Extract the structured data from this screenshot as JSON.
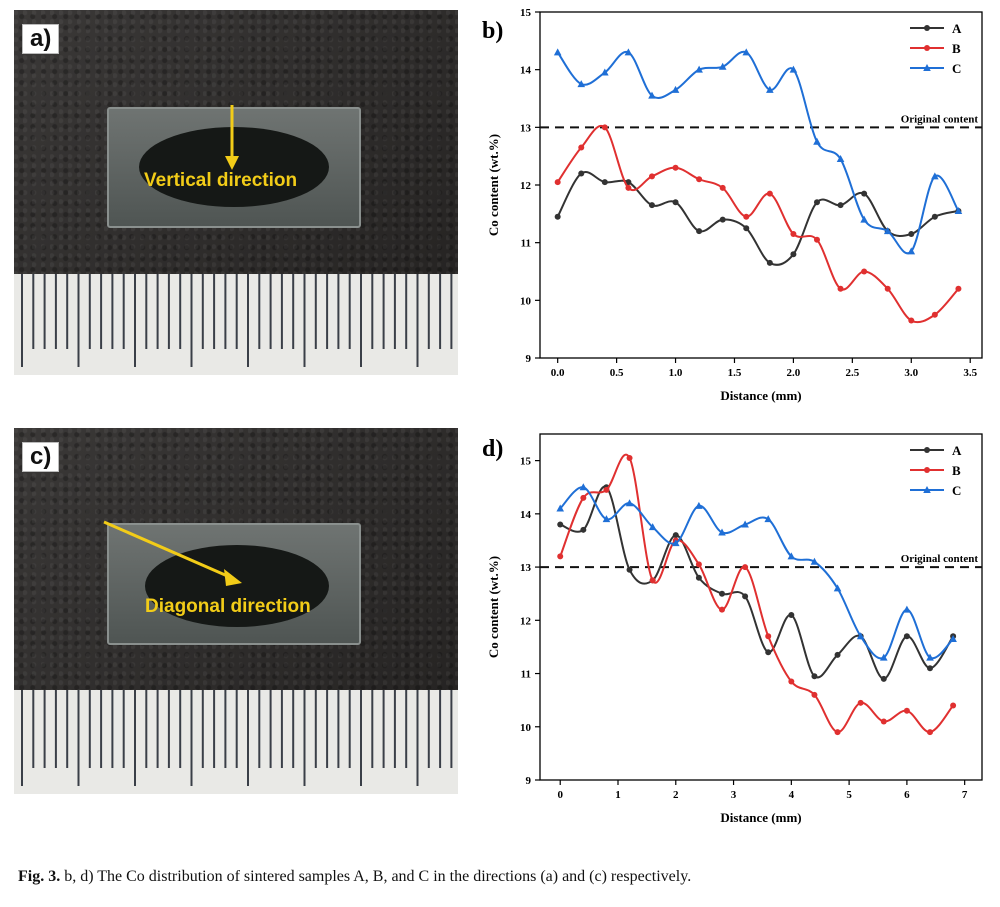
{
  "photos": [
    {
      "label": "a)",
      "direction_text": "Vertical direction",
      "arrow": "vertical"
    },
    {
      "label": "c)",
      "direction_text": "Diagonal direction",
      "arrow": "diagonal"
    }
  ],
  "colors": {
    "A": "#333333",
    "B": "#e03030",
    "C": "#1f6fd6",
    "reference": "#111111",
    "annotation": "#f2cc18"
  },
  "chart_data": [
    {
      "panel": "b)",
      "type": "line",
      "xlabel": "Distance (mm)",
      "ylabel": "Co content (wt.%)",
      "xlim": [
        -0.15,
        3.6
      ],
      "ylim": [
        9,
        15
      ],
      "xticks": [
        0.0,
        0.5,
        1.0,
        1.5,
        2.0,
        2.5,
        3.0,
        3.5
      ],
      "xtick_labels": [
        "0.0",
        "0.5",
        "1.0",
        "1.5",
        "2.0",
        "2.5",
        "3.0",
        "3.5"
      ],
      "yticks": [
        9,
        10,
        11,
        12,
        13,
        14,
        15
      ],
      "ytick_labels": [
        "9",
        "10",
        "11",
        "12",
        "13",
        "14",
        "15"
      ],
      "legend": "top-right",
      "grid": false,
      "reference": {
        "y": 13,
        "label": "Original content"
      },
      "series": [
        {
          "name": "A",
          "color_key": "A",
          "marker": "circle",
          "x": [
            0,
            0.2,
            0.4,
            0.6,
            0.8,
            1.0,
            1.2,
            1.4,
            1.6,
            1.8,
            2.0,
            2.2,
            2.4,
            2.6,
            2.8,
            3.0,
            3.2,
            3.4
          ],
          "y": [
            11.45,
            12.2,
            12.05,
            12.05,
            11.65,
            11.7,
            11.2,
            11.4,
            11.25,
            10.65,
            10.8,
            11.7,
            11.65,
            11.85,
            11.2,
            11.15,
            11.45,
            11.55
          ]
        },
        {
          "name": "B",
          "color_key": "B",
          "marker": "circle",
          "x": [
            0,
            0.2,
            0.4,
            0.6,
            0.8,
            1.0,
            1.2,
            1.4,
            1.6,
            1.8,
            2.0,
            2.2,
            2.4,
            2.6,
            2.8,
            3.0,
            3.2,
            3.4
          ],
          "y": [
            12.05,
            12.65,
            13.0,
            11.95,
            12.15,
            12.3,
            12.1,
            11.95,
            11.45,
            11.85,
            11.15,
            11.05,
            10.2,
            10.5,
            10.2,
            9.65,
            9.75,
            10.2
          ]
        },
        {
          "name": "C",
          "color_key": "C",
          "marker": "triangle",
          "x": [
            0,
            0.2,
            0.4,
            0.6,
            0.8,
            1.0,
            1.2,
            1.4,
            1.6,
            1.8,
            2.0,
            2.2,
            2.4,
            2.6,
            2.8,
            3.0,
            3.2,
            3.4
          ],
          "y": [
            14.3,
            13.75,
            13.95,
            14.3,
            13.55,
            13.65,
            14.0,
            14.05,
            14.3,
            13.65,
            14.0,
            12.75,
            12.45,
            11.4,
            11.2,
            10.85,
            12.15,
            11.55
          ]
        }
      ]
    },
    {
      "panel": "d)",
      "type": "line",
      "xlabel": "Distance (mm)",
      "ylabel": "Co content (wt.%)",
      "xlim": [
        -0.35,
        7.3
      ],
      "ylim": [
        9,
        15.5
      ],
      "xticks": [
        0,
        1,
        2,
        3,
        4,
        5,
        6,
        7
      ],
      "xtick_labels": [
        "0",
        "1",
        "2",
        "3",
        "4",
        "5",
        "6",
        "7"
      ],
      "yticks": [
        9,
        10,
        11,
        12,
        13,
        14,
        15
      ],
      "ytick_labels": [
        "9",
        "10",
        "11",
        "12",
        "13",
        "14",
        "15"
      ],
      "legend": "top-right",
      "grid": false,
      "reference": {
        "y": 13,
        "label": "Original content"
      },
      "series": [
        {
          "name": "A",
          "color_key": "A",
          "marker": "circle",
          "x": [
            0,
            0.4,
            0.8,
            1.2,
            1.6,
            2.0,
            2.4,
            2.8,
            3.2,
            3.6,
            4.0,
            4.4,
            4.8,
            5.2,
            5.6,
            6.0,
            6.4,
            6.8
          ],
          "y": [
            13.8,
            13.7,
            14.5,
            12.95,
            12.75,
            13.6,
            12.8,
            12.5,
            12.45,
            11.4,
            12.1,
            10.95,
            11.35,
            11.7,
            10.9,
            11.7,
            11.1,
            11.7
          ]
        },
        {
          "name": "B",
          "color_key": "B",
          "marker": "circle",
          "x": [
            0,
            0.4,
            0.8,
            1.2,
            1.6,
            2.0,
            2.4,
            2.8,
            3.2,
            3.6,
            4.0,
            4.4,
            4.8,
            5.2,
            5.6,
            6.0,
            6.4,
            6.8
          ],
          "y": [
            13.2,
            14.3,
            14.45,
            15.05,
            12.75,
            13.5,
            13.05,
            12.2,
            13.0,
            11.7,
            10.85,
            10.6,
            9.9,
            10.45,
            10.1,
            10.3,
            9.9,
            10.4
          ]
        },
        {
          "name": "C",
          "color_key": "C",
          "marker": "triangle",
          "x": [
            0,
            0.4,
            0.8,
            1.2,
            1.6,
            2.0,
            2.4,
            2.8,
            3.2,
            3.6,
            4.0,
            4.4,
            4.8,
            5.2,
            5.6,
            6.0,
            6.4,
            6.8
          ],
          "y": [
            14.1,
            14.5,
            13.9,
            14.2,
            13.75,
            13.45,
            14.15,
            13.65,
            13.8,
            13.9,
            13.2,
            13.1,
            12.6,
            11.7,
            11.3,
            12.2,
            11.3,
            11.65
          ]
        }
      ]
    }
  ],
  "caption": {
    "prefix": "Fig. 3.",
    "text": " b, d) The Co distribution of sintered samples A, B, and C in the directions (a) and (c) respectively."
  }
}
